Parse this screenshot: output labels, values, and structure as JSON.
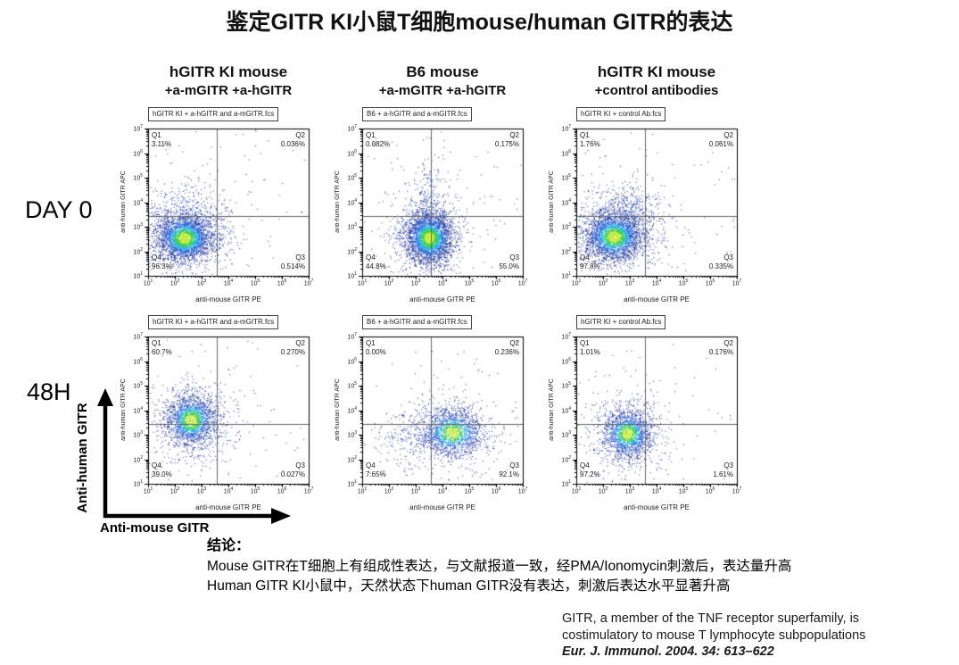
{
  "title": "鉴定GITR KI小鼠T细胞mouse/human GITR的表达",
  "row_labels": [
    "DAY 0",
    "48H"
  ],
  "columns": [
    {
      "line1": "hGITR KI mouse",
      "line2": "+a-mGITR +a-hGITR"
    },
    {
      "line1": "B6 mouse",
      "line2": "+a-mGITR +a-hGITR"
    },
    {
      "line1": "hGITR KI mouse",
      "line2": "+control antibodies"
    }
  ],
  "axis_arrows": {
    "y_label": "Anti-human GITR",
    "x_label": "Anti-mouse GITR"
  },
  "conclusion": {
    "heading": "结论：",
    "line1": "Mouse GITR在T细胞上有组成性表达，与文献报道一致，经PMA/Ionomycin刺激后，表达量升高",
    "line2": "Human GITR KI小鼠中，天然状态下human GITR没有表达，刺激后表达水平显著升高"
  },
  "citation": {
    "line1": "GITR, a member of the TNF receptor superfamily, is",
    "line2": "costimulatory to mouse T lymphocyte subpopulations",
    "line3": "Eur. J. Immunol. 2004. 34: 613–622"
  },
  "colors": {
    "dot_core": "#c6ef35",
    "dot_green": "#3bd24c",
    "dot_cyan": "#21b2e6",
    "dot_blue": "#2a60d4",
    "dot_navy": "#20339b",
    "gate_line": "#666666"
  },
  "chart_data": [
    {
      "type": "scatter",
      "row": "DAY 0",
      "column": "hGITR KI mouse +a-mGITR +a-hGITR",
      "file_label": "hGITR KI + a-hGITR and a-mGITR.fcs",
      "xlabel": "anti-mouse GITR PE",
      "ylabel": "anti-human GITR APC",
      "x_ticks_log10": [
        1,
        2,
        3,
        4,
        5,
        6,
        7
      ],
      "y_ticks_log10": [
        1,
        2,
        3,
        4,
        5,
        6,
        7
      ],
      "xlim_log10": [
        1,
        7
      ],
      "ylim_log10": [
        1,
        7
      ],
      "gate_x_log10": 3.55,
      "gate_y_log10": 3.42,
      "quadrants": [
        {
          "label": "Q1",
          "value": "3.11%"
        },
        {
          "label": "Q2",
          "value": "0.036%"
        },
        {
          "label": "Q3",
          "value": "0.514%"
        },
        {
          "label": "Q4",
          "value": "96.3%"
        }
      ],
      "clusters": [
        {
          "cx": 2.35,
          "cy": 2.55,
          "sx": 0.5,
          "sy": 0.45,
          "n": 2600,
          "style": "density"
        },
        {
          "cx": 2.45,
          "cy": 2.7,
          "sx": 0.95,
          "sy": 0.85,
          "n": 900,
          "style": "sparse"
        },
        {
          "cx": 2.5,
          "cy": 3.9,
          "sx": 0.7,
          "sy": 0.5,
          "n": 140,
          "style": "sparse"
        }
      ],
      "noise": 90
    },
    {
      "type": "scatter",
      "row": "DAY 0",
      "column": "B6 mouse +a-mGITR +a-hGITR",
      "file_label": "B6 + a-hGITR and a-mGITR.fcs",
      "xlabel": "anti-mouse GITR PE",
      "ylabel": "anti-human GITR APC",
      "x_ticks_log10": [
        1,
        2,
        3,
        4,
        5,
        6,
        7
      ],
      "y_ticks_log10": [
        1,
        2,
        3,
        4,
        5,
        6,
        7
      ],
      "xlim_log10": [
        1,
        7
      ],
      "ylim_log10": [
        1,
        7
      ],
      "gate_x_log10": 3.55,
      "gate_y_log10": 3.42,
      "quadrants": [
        {
          "label": "Q1",
          "value": "0.082%"
        },
        {
          "label": "Q2",
          "value": "0.175%"
        },
        {
          "label": "Q3",
          "value": "55.0%"
        },
        {
          "label": "Q4",
          "value": "44.8%"
        }
      ],
      "clusters": [
        {
          "cx": 3.5,
          "cy": 2.55,
          "sx": 0.42,
          "sy": 0.5,
          "n": 2600,
          "style": "density"
        },
        {
          "cx": 3.45,
          "cy": 2.8,
          "sx": 0.7,
          "sy": 0.95,
          "n": 900,
          "style": "sparse"
        },
        {
          "cx": 3.45,
          "cy": 4.3,
          "sx": 0.22,
          "sy": 0.95,
          "n": 150,
          "style": "sparse"
        }
      ],
      "noise": 80
    },
    {
      "type": "scatter",
      "row": "DAY 0",
      "column": "hGITR KI mouse +control antibodies",
      "file_label": "hGITR KI + control Ab.fcs",
      "xlabel": "anti-mouse GITR PE",
      "ylabel": "anti-human GITR APC",
      "x_ticks_log10": [
        1,
        2,
        3,
        4,
        5,
        6,
        7
      ],
      "y_ticks_log10": [
        1,
        2,
        3,
        4,
        5,
        6,
        7
      ],
      "xlim_log10": [
        1,
        7
      ],
      "ylim_log10": [
        1,
        7
      ],
      "gate_x_log10": 3.55,
      "gate_y_log10": 3.42,
      "quadrants": [
        {
          "label": "Q1",
          "value": "1.76%"
        },
        {
          "label": "Q2",
          "value": "0.061%"
        },
        {
          "label": "Q3",
          "value": "0.335%"
        },
        {
          "label": "Q4",
          "value": "97.8%"
        }
      ],
      "clusters": [
        {
          "cx": 2.4,
          "cy": 2.6,
          "sx": 0.52,
          "sy": 0.48,
          "n": 2600,
          "style": "density"
        },
        {
          "cx": 2.6,
          "cy": 2.9,
          "sx": 0.9,
          "sy": 0.8,
          "n": 850,
          "style": "sparse"
        },
        {
          "cx": 3.0,
          "cy": 3.85,
          "sx": 0.55,
          "sy": 0.45,
          "n": 190,
          "style": "sparse"
        }
      ],
      "noise": 70
    },
    {
      "type": "scatter",
      "row": "48H",
      "column": "hGITR KI mouse +a-mGITR +a-hGITR",
      "file_label": "hGITR KI + a-hGITR and a-mGITR.fcs",
      "xlabel": "anti-mouse GITR PE",
      "ylabel": "anti-human GITR APC",
      "x_ticks_log10": [
        1,
        2,
        3,
        4,
        5,
        6,
        7
      ],
      "y_ticks_log10": [
        1,
        2,
        3,
        4,
        5,
        6,
        7
      ],
      "xlim_log10": [
        1,
        7
      ],
      "ylim_log10": [
        1,
        7
      ],
      "gate_x_log10": 3.55,
      "gate_y_log10": 3.42,
      "quadrants": [
        {
          "label": "Q1",
          "value": "60.7%"
        },
        {
          "label": "Q2",
          "value": "0.270%"
        },
        {
          "label": "Q3",
          "value": "0.027%"
        },
        {
          "label": "Q4",
          "value": "39.0%"
        }
      ],
      "clusters": [
        {
          "cx": 2.6,
          "cy": 3.6,
          "sx": 0.45,
          "sy": 0.5,
          "n": 1700,
          "style": "density"
        },
        {
          "cx": 2.65,
          "cy": 3.5,
          "sx": 0.85,
          "sy": 0.9,
          "n": 600,
          "style": "sparse"
        }
      ],
      "noise": 55
    },
    {
      "type": "scatter",
      "row": "48H",
      "column": "B6 mouse +a-mGITR +a-hGITR",
      "file_label": "B6 + a-hGITR and a-mGITR.fcs",
      "xlabel": "anti-mouse GITR PE",
      "ylabel": "anti-human GITR APC",
      "x_ticks_log10": [
        1,
        2,
        3,
        4,
        5,
        6,
        7
      ],
      "y_ticks_log10": [
        1,
        2,
        3,
        4,
        5,
        6,
        7
      ],
      "xlim_log10": [
        1,
        7
      ],
      "ylim_log10": [
        1,
        7
      ],
      "gate_x_log10": 3.55,
      "gate_y_log10": 3.42,
      "quadrants": [
        {
          "label": "Q1",
          "value": "0.00%"
        },
        {
          "label": "Q2",
          "value": "0.236%"
        },
        {
          "label": "Q3",
          "value": "92.1%"
        },
        {
          "label": "Q4",
          "value": "7.65%"
        }
      ],
      "clusters": [
        {
          "cx": 4.35,
          "cy": 3.1,
          "sx": 0.55,
          "sy": 0.45,
          "n": 1400,
          "style": "density"
        },
        {
          "cx": 4.15,
          "cy": 3.2,
          "sx": 1.05,
          "sy": 0.8,
          "n": 550,
          "style": "sparse"
        },
        {
          "cx": 2.75,
          "cy": 2.9,
          "sx": 0.75,
          "sy": 0.65,
          "n": 150,
          "style": "sparse"
        }
      ],
      "noise": 55
    },
    {
      "type": "scatter",
      "row": "48H",
      "column": "hGITR KI mouse +control antibodies",
      "file_label": "hGITR KI + control Ab.fcs",
      "xlabel": "anti-mouse GITR PE",
      "ylabel": "anti-human GITR APC",
      "x_ticks_log10": [
        1,
        2,
        3,
        4,
        5,
        6,
        7
      ],
      "y_ticks_log10": [
        1,
        2,
        3,
        4,
        5,
        6,
        7
      ],
      "xlim_log10": [
        1,
        7
      ],
      "ylim_log10": [
        1,
        7
      ],
      "gate_x_log10": 3.55,
      "gate_y_log10": 3.42,
      "quadrants": [
        {
          "label": "Q1",
          "value": "1.01%"
        },
        {
          "label": "Q2",
          "value": "0.176%"
        },
        {
          "label": "Q3",
          "value": "1.61%"
        },
        {
          "label": "Q4",
          "value": "97.2%"
        }
      ],
      "clusters": [
        {
          "cx": 2.9,
          "cy": 3.05,
          "sx": 0.42,
          "sy": 0.46,
          "n": 1500,
          "style": "density"
        },
        {
          "cx": 2.9,
          "cy": 3.0,
          "sx": 0.8,
          "sy": 0.85,
          "n": 550,
          "style": "sparse"
        }
      ],
      "noise": 55
    }
  ]
}
